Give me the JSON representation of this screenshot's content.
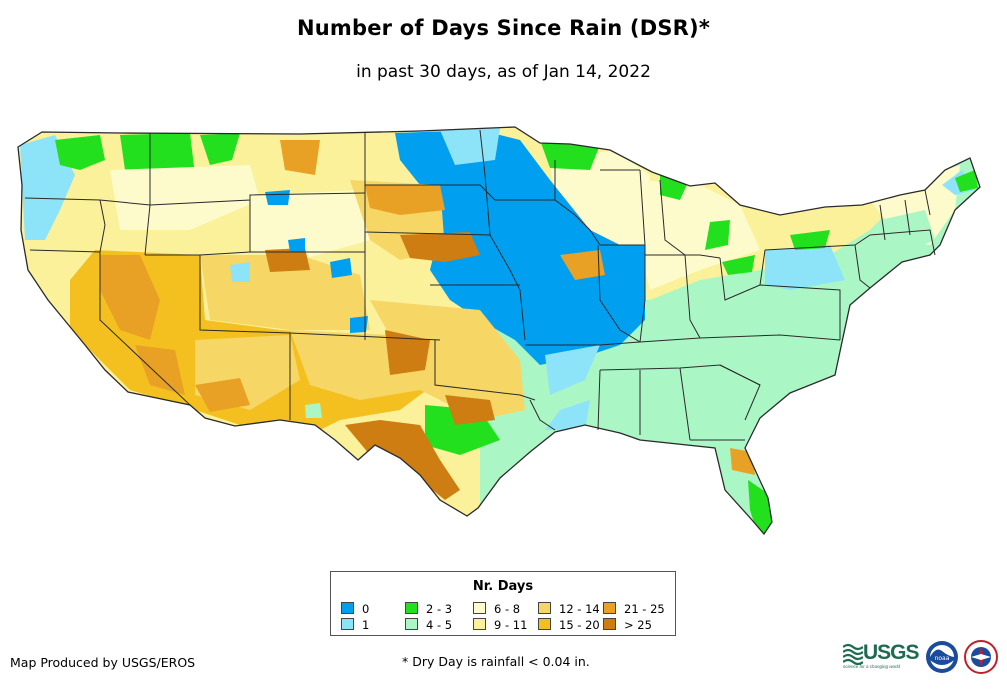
{
  "title": "Number of Days Since Rain (DSR)*",
  "subtitle": "in past 30 days, as of Jan 14, 2022",
  "legend": {
    "title": "Nr. Days",
    "items": [
      {
        "label": "0",
        "color": "#009ff0"
      },
      {
        "label": "1",
        "color": "#8de4f8"
      },
      {
        "label": "2 - 3",
        "color": "#22e01e"
      },
      {
        "label": "4 - 5",
        "color": "#abf6c5"
      },
      {
        "label": "6 - 8",
        "color": "#fdfbcc"
      },
      {
        "label": "9 - 11",
        "color": "#fbf19a"
      },
      {
        "label": "12 - 14",
        "color": "#f6d766"
      },
      {
        "label": "15 - 20",
        "color": "#f4c01f"
      },
      {
        "label": "21 - 25",
        "color": "#e9a125"
      },
      {
        "label": "> 25",
        "color": "#cd7d11"
      }
    ]
  },
  "footer": {
    "credit": "Map Produced by USGS/EROS",
    "footnote": "* Dry Day is rainfall < 0.04 in."
  },
  "logos": {
    "usgs": "USGS",
    "usgs_tagline": "science for a changing world",
    "noaa": "noaa",
    "nws": "NATIONAL WEATHER SERVICE"
  },
  "colors": {
    "state_border": "#2a2a2a"
  }
}
